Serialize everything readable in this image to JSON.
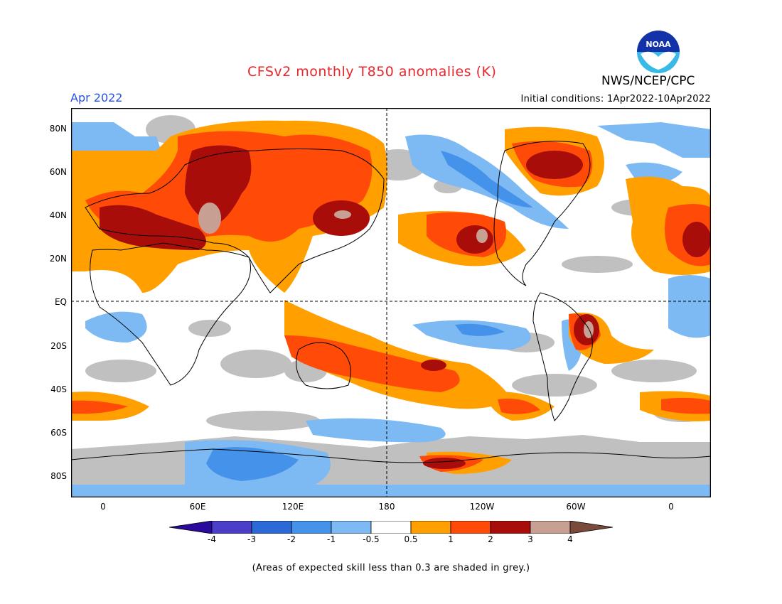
{
  "header": {
    "title": "CFSv2 monthly T850 anomalies (K)",
    "month": "Apr 2022",
    "initial_conditions": "Initial conditions: 1Apr2022-10Apr2022",
    "org": "NWS/NCEP/CPC",
    "logo_text": "NOAA"
  },
  "map": {
    "y_labels": [
      "80N",
      "60N",
      "40N",
      "20N",
      "EQ",
      "20S",
      "40S",
      "60S",
      "80S"
    ],
    "x_labels": [
      "0",
      "60E",
      "120E",
      "180",
      "120W",
      "60W",
      "0"
    ],
    "colors": {
      "lt_-4": "#2a0a9c",
      "-4_-3": "#4b3ec9",
      "-3_-2": "#2b6ad6",
      "-2_-1": "#4592ea",
      "-1_-0.5": "#7dbaf3",
      "-0.5_0.5": "#ffffff",
      "0.5_1": "#ffa000",
      "1_2": "#ff4a08",
      "2_3": "#a80d0a",
      "3_4": "#c8a093",
      "gt_4": "#7a4a3a",
      "low_skill": "#c0c0c0"
    }
  },
  "colorbar": {
    "labels": [
      "-4",
      "-3",
      "-2",
      "-1",
      "-0.5",
      "0.5",
      "1",
      "2",
      "3",
      "4"
    ],
    "colors": [
      "#2a0a9c",
      "#4b3ec9",
      "#2b6ad6",
      "#4592ea",
      "#7dbaf3",
      "#ffffff",
      "#ffa000",
      "#ff4a08",
      "#a80d0a",
      "#c8a093",
      "#7a4a3a"
    ]
  },
  "footnote": "(Areas of expected skill less than 0.3 are shaded in grey.)"
}
